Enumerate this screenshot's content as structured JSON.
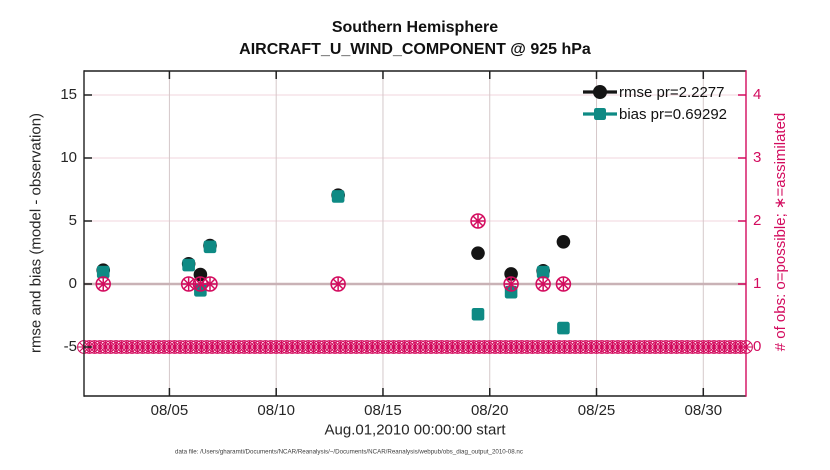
{
  "title": {
    "line1": "Southern Hemisphere",
    "line2": "AIRCRAFT_U_WIND_COMPONENT @ 925 hPa"
  },
  "axes": {
    "xlabel": "Aug.01,2010 00:00:00 start",
    "ylabel_left": "rmse and bias (model - observation)",
    "ylabel_right": "# of obs: o=possible; ∗=assimilated",
    "x_tick_days": [
      5,
      10,
      15,
      20,
      25,
      30
    ],
    "x_tick_labels": [
      "08/05",
      "08/10",
      "08/15",
      "08/20",
      "08/25",
      "08/30"
    ],
    "y_ticks_left": [
      -5,
      0,
      5,
      10,
      15
    ],
    "y_ticks_right": [
      0,
      1,
      2,
      3,
      4
    ]
  },
  "legend": {
    "items": [
      {
        "label": "rmse pr=2.2277",
        "marker": "filled-circle",
        "color": "#141414"
      },
      {
        "label": "bias pr=0.69292",
        "marker": "filled-square",
        "color": "#0e8a84"
      }
    ]
  },
  "caption": "data file: /Users/gharamti/Documents/NCAR/Reanalysis/~/Documents/NCAR/Reanalysis/webpub/obs_diag_output_2010-08.nc",
  "colors": {
    "rmse": "#141414",
    "bias": "#0e8a84",
    "obs": "#d30b5e",
    "axis": "#1f1f1f",
    "grid_horizontal": "#f2d4dc",
    "grid_vertical": "#d5c8ca",
    "zero_line": "#c9b2b6"
  },
  "chart_data": {
    "type": "scatter",
    "title": "Southern Hemisphere — AIRCRAFT_U_WIND_COMPONENT @ 925 hPa",
    "xlabel": "Aug.01,2010 00:00:00 start",
    "x_unit": "day of August 2010",
    "xlim_days": [
      1,
      32
    ],
    "ylim_left": [
      -8.9,
      17.1
    ],
    "y_right_mapping": "count c is plotted at left-axis value 5*c-5 (0..4 maps to -5..15)",
    "grid": true,
    "zero_reference_line": 0,
    "series": [
      {
        "name": "rmse pr=2.2277",
        "axis": "left",
        "marker": "filled-circle",
        "color": "#141414",
        "points": [
          [
            1.9,
            1.1
          ],
          [
            5.9,
            1.6
          ],
          [
            6.45,
            0.75
          ],
          [
            6.9,
            3.05
          ],
          [
            12.9,
            7.05
          ],
          [
            19.45,
            2.45
          ],
          [
            21.0,
            0.8
          ],
          [
            22.5,
            1.05
          ],
          [
            23.45,
            3.35
          ]
        ]
      },
      {
        "name": "bias pr=0.69292",
        "axis": "left",
        "marker": "filled-square",
        "color": "#0e8a84",
        "points": [
          [
            1.9,
            0.95
          ],
          [
            5.9,
            1.5
          ],
          [
            6.45,
            -0.5
          ],
          [
            6.9,
            2.95
          ],
          [
            12.9,
            6.95
          ],
          [
            19.45,
            -2.4
          ],
          [
            21.0,
            -0.65
          ],
          [
            22.5,
            0.95
          ],
          [
            23.45,
            -3.5
          ]
        ]
      },
      {
        "name": "# of obs (o=possible, *=assimilated)",
        "axis": "right",
        "marker": "circle-asterisk",
        "color": "#d30b5e",
        "nonzero_points": [
          [
            1.9,
            1
          ],
          [
            5.9,
            1
          ],
          [
            6.45,
            1
          ],
          [
            6.9,
            1
          ],
          [
            12.9,
            1
          ],
          [
            19.45,
            2
          ],
          [
            21.0,
            1
          ],
          [
            22.5,
            1
          ],
          [
            23.45,
            1
          ]
        ],
        "zero_row": {
          "from_day": 1,
          "to_day": 32,
          "step_days": 0.25,
          "count": 0
        }
      }
    ]
  }
}
